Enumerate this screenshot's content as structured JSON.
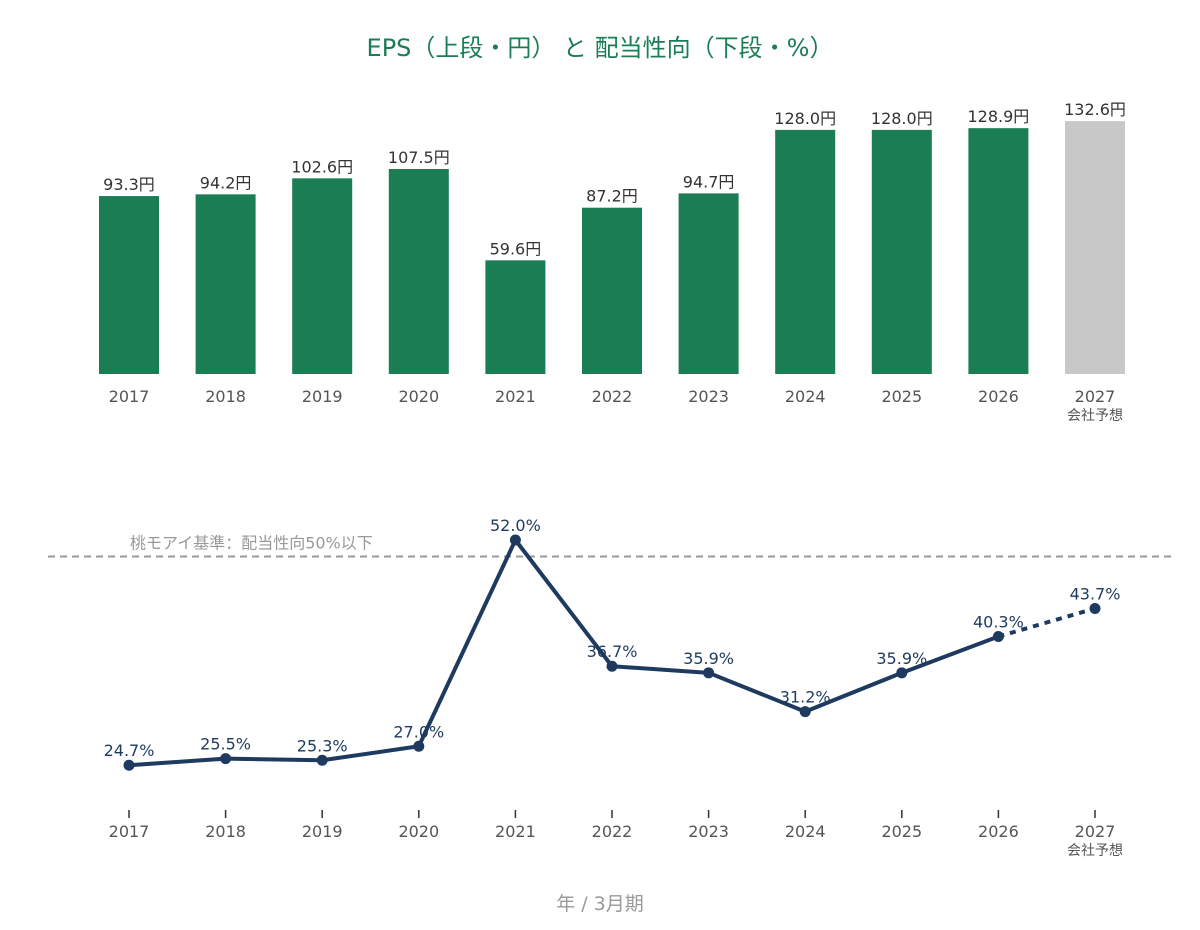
{
  "title": "EPS（上段・円） と 配当性向（下段・%）",
  "x_axis_title": "年 / 3月期",
  "colors": {
    "eps_actual": "#1b7d53",
    "eps_forecast": "#c8c8c8",
    "ratio_line": "#1e3a5f",
    "reference_line": "#999999",
    "title": "#1b7d53"
  },
  "chart_data": [
    {
      "type": "bar",
      "categories": [
        "2017",
        "2018",
        "2019",
        "2020",
        "2021",
        "2022",
        "2023",
        "2024",
        "2025",
        "2026",
        "2027"
      ],
      "category_sublabels": [
        "",
        "",
        "",
        "",
        "",
        "",
        "",
        "",
        "",
        "",
        "会社予想"
      ],
      "values": [
        93.3,
        94.2,
        102.6,
        107.5,
        59.6,
        87.2,
        94.7,
        128.0,
        128.0,
        128.9,
        132.6
      ],
      "value_labels": [
        "93.3円",
        "94.2円",
        "102.6円",
        "107.5円",
        "59.6円",
        "87.2円",
        "94.7円",
        "128.0円",
        "128.0円",
        "128.9円",
        "132.6円"
      ],
      "forecast_index": 10,
      "ylim": [
        0,
        140
      ],
      "grid": false
    },
    {
      "type": "line",
      "categories": [
        "2017",
        "2018",
        "2019",
        "2020",
        "2021",
        "2022",
        "2023",
        "2024",
        "2025",
        "2026",
        "2027"
      ],
      "category_sublabels": [
        "",
        "",
        "",
        "",
        "",
        "",
        "",
        "",
        "",
        "",
        "会社予想"
      ],
      "values": [
        24.7,
        25.5,
        25.3,
        27.0,
        52.0,
        36.7,
        35.9,
        31.2,
        35.9,
        40.3,
        43.7
      ],
      "value_labels": [
        "24.7%",
        "25.5%",
        "25.3%",
        "27.0%",
        "52.0%",
        "36.7%",
        "35.9%",
        "31.2%",
        "35.9%",
        "40.3%",
        "43.7%"
      ],
      "forecast_index": 10,
      "reference_line": {
        "value": 50,
        "label": "桃モアイ基準：配当性向50%以下"
      },
      "ylim": [
        0,
        60
      ],
      "grid": false
    }
  ]
}
